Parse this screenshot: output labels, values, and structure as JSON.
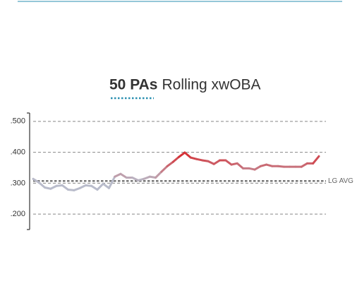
{
  "chart_data": {
    "type": "line",
    "title_bold": "50 PAs",
    "title": "Rolling xwOBA",
    "categories": [
      null,
      null,
      null,
      null,
      null,
      null,
      null,
      null,
      null,
      null,
      null,
      null,
      null,
      null,
      null,
      null,
      null,
      null,
      null,
      null,
      null,
      null,
      null,
      null,
      null,
      null,
      null,
      null,
      null,
      null,
      null,
      null,
      null,
      null,
      null,
      null,
      null,
      null,
      null,
      null,
      null,
      null,
      null,
      null,
      null,
      null,
      null,
      null,
      null,
      null
    ],
    "values": [
      0.314,
      0.302,
      0.286,
      0.282,
      0.291,
      0.293,
      0.279,
      0.277,
      0.284,
      0.293,
      0.291,
      0.279,
      0.298,
      0.284,
      0.321,
      0.33,
      0.318,
      0.318,
      0.309,
      0.314,
      0.321,
      0.318,
      0.337,
      0.355,
      0.369,
      0.385,
      0.399,
      0.383,
      0.378,
      0.374,
      0.371,
      0.362,
      0.374,
      0.374,
      0.36,
      0.364,
      0.348,
      0.348,
      0.344,
      0.355,
      0.36,
      0.355,
      0.355,
      0.353,
      0.353,
      0.353,
      0.353,
      0.364,
      0.364,
      0.387
    ],
    "below_color": "#b9bccb",
    "above_color": "#d7262b",
    "reference": {
      "value": 0.307,
      "label": "LG AVG"
    },
    "ylim": [
      0.15,
      0.527
    ],
    "yticks": [
      {
        "value": 0.5,
        "label": ".500"
      },
      {
        "value": 0.4,
        "label": ".400"
      },
      {
        "value": 0.3,
        "label": ".300"
      },
      {
        "value": 0.2,
        "label": ".200"
      }
    ],
    "grid": true
  }
}
